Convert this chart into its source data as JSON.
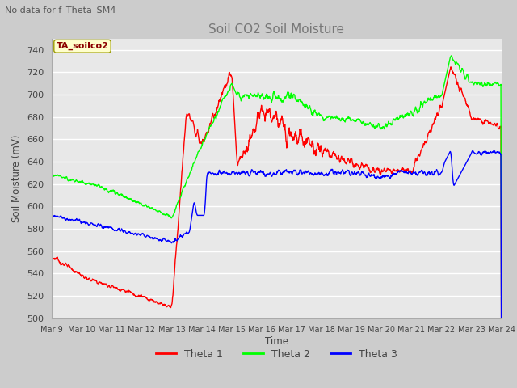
{
  "title": "Soil CO2 Soil Moisture",
  "subtitle": "No data for f_Theta_SM4",
  "ylabel": "Soil Moisture (mV)",
  "xlabel": "Time",
  "ylim": [
    500,
    750
  ],
  "yticks": [
    500,
    520,
    540,
    560,
    580,
    600,
    620,
    640,
    660,
    680,
    700,
    720,
    740
  ],
  "annotation": "TA_soilco2",
  "legend": [
    "Theta 1",
    "Theta 2",
    "Theta 3"
  ],
  "colors": [
    "red",
    "green",
    "blue"
  ],
  "fig_bg": "#cccccc",
  "plot_bg": "#e8e8e8",
  "grid_color": "#ffffff",
  "n_points": 1500
}
